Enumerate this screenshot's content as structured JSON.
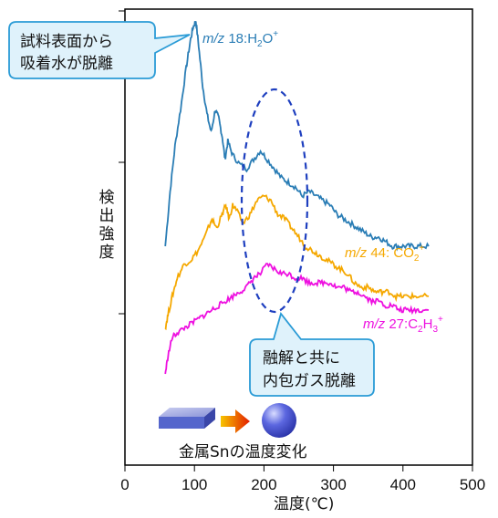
{
  "chart_data": {
    "type": "line",
    "xlabel": "温度(℃)",
    "ylabel": "検出強度",
    "x_ticks": [
      0,
      100,
      200,
      300,
      400,
      500
    ],
    "xlim": [
      0,
      500
    ],
    "ylim": [
      0,
      1
    ],
    "y_scale": "log",
    "y_values_relative": true,
    "series": [
      {
        "label_prefix": "m/z",
        "label_value": "18:H",
        "label_sub": "2",
        "label_tail": "O",
        "label_sup": "+",
        "color": "#2a7db5",
        "points": [
          [
            58,
            0.48
          ],
          [
            65,
            0.6
          ],
          [
            72,
            0.7
          ],
          [
            80,
            0.78
          ],
          [
            88,
            0.87
          ],
          [
            94,
            0.93
          ],
          [
            98,
            0.96
          ],
          [
            102,
            0.975
          ],
          [
            106,
            0.92
          ],
          [
            112,
            0.83
          ],
          [
            118,
            0.77
          ],
          [
            124,
            0.73
          ],
          [
            130,
            0.78
          ],
          [
            135,
            0.76
          ],
          [
            140,
            0.72
          ],
          [
            144,
            0.67
          ],
          [
            148,
            0.71
          ],
          [
            155,
            0.68
          ],
          [
            165,
            0.66
          ],
          [
            175,
            0.65
          ],
          [
            185,
            0.67
          ],
          [
            195,
            0.69
          ],
          [
            205,
            0.67
          ],
          [
            215,
            0.65
          ],
          [
            225,
            0.63
          ],
          [
            235,
            0.62
          ],
          [
            245,
            0.61
          ],
          [
            255,
            0.59
          ],
          [
            265,
            0.6
          ],
          [
            275,
            0.59
          ],
          [
            285,
            0.58
          ],
          [
            295,
            0.57
          ],
          [
            305,
            0.55
          ],
          [
            315,
            0.54
          ],
          [
            325,
            0.53
          ],
          [
            335,
            0.52
          ],
          [
            345,
            0.51
          ],
          [
            355,
            0.5
          ],
          [
            365,
            0.5
          ],
          [
            375,
            0.49
          ],
          [
            385,
            0.48
          ],
          [
            395,
            0.48
          ],
          [
            405,
            0.48
          ],
          [
            415,
            0.48
          ],
          [
            425,
            0.48
          ],
          [
            437,
            0.48
          ]
        ]
      },
      {
        "label_prefix": "m/z",
        "label_value": "44: CO",
        "label_sub": "2",
        "label_tail": "",
        "label_sup": "+",
        "color": "#f5a800",
        "points": [
          [
            58,
            0.3
          ],
          [
            62,
            0.33
          ],
          [
            68,
            0.37
          ],
          [
            75,
            0.41
          ],
          [
            85,
            0.44
          ],
          [
            95,
            0.45
          ],
          [
            105,
            0.47
          ],
          [
            115,
            0.5
          ],
          [
            125,
            0.54
          ],
          [
            132,
            0.52
          ],
          [
            140,
            0.55
          ],
          [
            145,
            0.57
          ],
          [
            150,
            0.54
          ],
          [
            155,
            0.57
          ],
          [
            160,
            0.56
          ],
          [
            170,
            0.53
          ],
          [
            180,
            0.55
          ],
          [
            190,
            0.58
          ],
          [
            200,
            0.59
          ],
          [
            210,
            0.58
          ],
          [
            220,
            0.55
          ],
          [
            230,
            0.54
          ],
          [
            240,
            0.52
          ],
          [
            250,
            0.5
          ],
          [
            260,
            0.48
          ],
          [
            270,
            0.47
          ],
          [
            280,
            0.46
          ],
          [
            290,
            0.45
          ],
          [
            300,
            0.44
          ],
          [
            310,
            0.43
          ],
          [
            320,
            0.42
          ],
          [
            330,
            0.4
          ],
          [
            340,
            0.39
          ],
          [
            350,
            0.39
          ],
          [
            360,
            0.38
          ],
          [
            370,
            0.38
          ],
          [
            380,
            0.38
          ],
          [
            390,
            0.37
          ],
          [
            400,
            0.37
          ],
          [
            410,
            0.37
          ],
          [
            420,
            0.37
          ],
          [
            437,
            0.37
          ]
        ]
      },
      {
        "label_prefix": "m/z",
        "label_value": "27:C",
        "label_sub": "2",
        "label_tail": "H",
        "label_sub2": "3",
        "label_sup": "+",
        "color": "#ee10e0",
        "points": [
          [
            58,
            0.2
          ],
          [
            62,
            0.24
          ],
          [
            68,
            0.28
          ],
          [
            75,
            0.29
          ],
          [
            85,
            0.3
          ],
          [
            95,
            0.31
          ],
          [
            105,
            0.32
          ],
          [
            115,
            0.33
          ],
          [
            125,
            0.34
          ],
          [
            135,
            0.35
          ],
          [
            145,
            0.36
          ],
          [
            155,
            0.37
          ],
          [
            165,
            0.38
          ],
          [
            175,
            0.39
          ],
          [
            185,
            0.41
          ],
          [
            195,
            0.42
          ],
          [
            205,
            0.44
          ],
          [
            215,
            0.43
          ],
          [
            225,
            0.42
          ],
          [
            235,
            0.42
          ],
          [
            245,
            0.41
          ],
          [
            255,
            0.41
          ],
          [
            265,
            0.4
          ],
          [
            275,
            0.4
          ],
          [
            285,
            0.4
          ],
          [
            295,
            0.4
          ],
          [
            305,
            0.39
          ],
          [
            315,
            0.39
          ],
          [
            325,
            0.38
          ],
          [
            335,
            0.38
          ],
          [
            345,
            0.37
          ],
          [
            355,
            0.36
          ],
          [
            365,
            0.36
          ],
          [
            375,
            0.35
          ],
          [
            385,
            0.35
          ],
          [
            395,
            0.34
          ],
          [
            405,
            0.34
          ],
          [
            415,
            0.34
          ],
          [
            425,
            0.34
          ],
          [
            437,
            0.34
          ]
        ]
      }
    ],
    "annotations": {
      "callout_top": [
        "試料表面から",
        "吸着水が脱離"
      ],
      "callout_bottom": [
        "融解と共に",
        "内包ガス脱離"
      ],
      "caption": "金属Snの温度変化"
    }
  },
  "style": {
    "callout_fill": "#dff2fb",
    "callout_stroke": "#2a9bd6",
    "ellipse_stroke": "#1e3fbf",
    "arrow_from": "#f7c400",
    "arrow_to": "#e21d00",
    "sheet_color": "#5566cc",
    "ball_color": "#3b48d6"
  }
}
